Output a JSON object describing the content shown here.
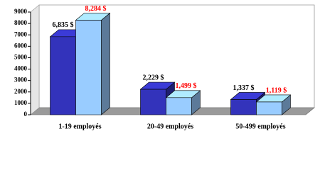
{
  "chart_data": {
    "type": "bar3d",
    "categories": [
      "1-19 employés",
      "20-49 employés",
      "50-499 employés"
    ],
    "series": [
      {
        "color": "#3333bb",
        "label_color": "#000000",
        "values": [
          6835,
          2229,
          1337
        ],
        "value_labels": [
          "6,835 $",
          "2,229 $",
          "1,337 $"
        ]
      },
      {
        "color": "#99ccff",
        "label_color": "#ff0000",
        "values": [
          8284,
          1499,
          1119
        ],
        "value_labels": [
          "8,284 $",
          "1,499 $",
          "1,119 $"
        ]
      }
    ],
    "ylim": [
      0,
      9000
    ],
    "yticks": [
      0,
      1000,
      2000,
      3000,
      4000,
      5000,
      6000,
      7000,
      8000,
      9000
    ]
  }
}
